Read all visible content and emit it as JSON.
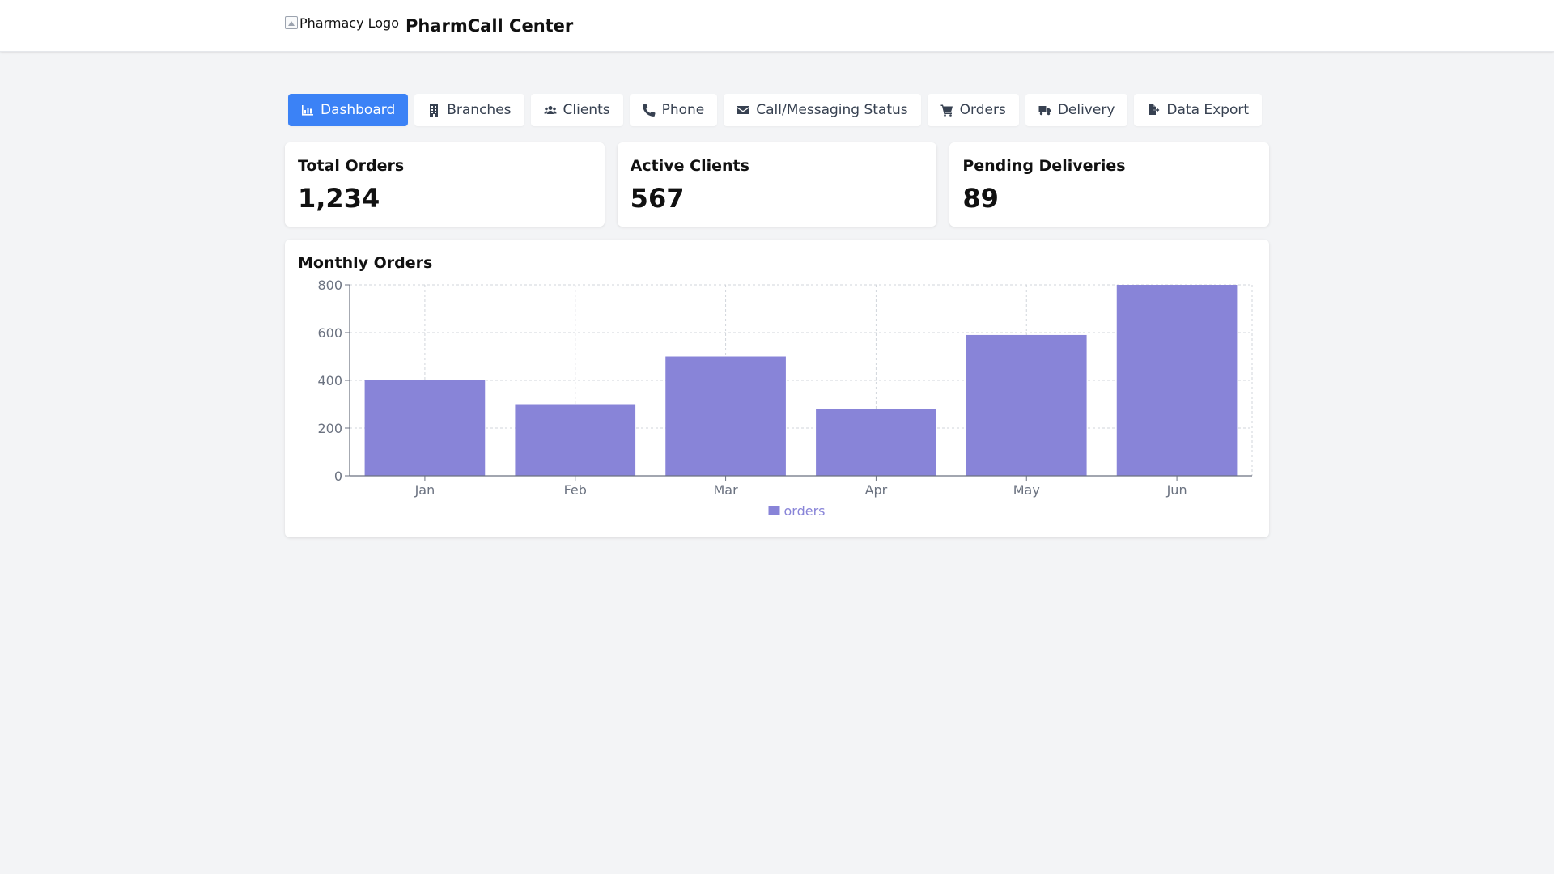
{
  "header": {
    "logo_alt": "Pharmacy Logo",
    "title": "PharmCall Center"
  },
  "tabs": [
    {
      "label": "Dashboard",
      "icon": "chart-bar-icon",
      "active": true
    },
    {
      "label": "Branches",
      "icon": "building-icon",
      "active": false
    },
    {
      "label": "Clients",
      "icon": "users-icon",
      "active": false
    },
    {
      "label": "Phone",
      "icon": "phone-icon",
      "active": false
    },
    {
      "label": "Call/Messaging Status",
      "icon": "envelope-icon",
      "active": false
    },
    {
      "label": "Orders",
      "icon": "cart-icon",
      "active": false
    },
    {
      "label": "Delivery",
      "icon": "truck-icon",
      "active": false
    },
    {
      "label": "Data Export",
      "icon": "file-export-icon",
      "active": false
    }
  ],
  "stats": [
    {
      "title": "Total Orders",
      "value": "1,234"
    },
    {
      "title": "Active Clients",
      "value": "567"
    },
    {
      "title": "Pending Deliveries",
      "value": "89"
    }
  ],
  "colors": {
    "accent": "#3b82f6",
    "bar": "#8884d8",
    "page_bg": "#f3f4f6"
  },
  "chart_data": {
    "type": "bar",
    "title": "Monthly Orders",
    "categories": [
      "Jan",
      "Feb",
      "Mar",
      "Apr",
      "May",
      "Jun"
    ],
    "series": [
      {
        "name": "orders",
        "values": [
          400,
          300,
          500,
          280,
          590,
          800
        ]
      }
    ],
    "yticks": [
      0,
      200,
      400,
      600,
      800
    ],
    "ylim": [
      0,
      800
    ],
    "grid": true,
    "legend": "bottom-center"
  }
}
